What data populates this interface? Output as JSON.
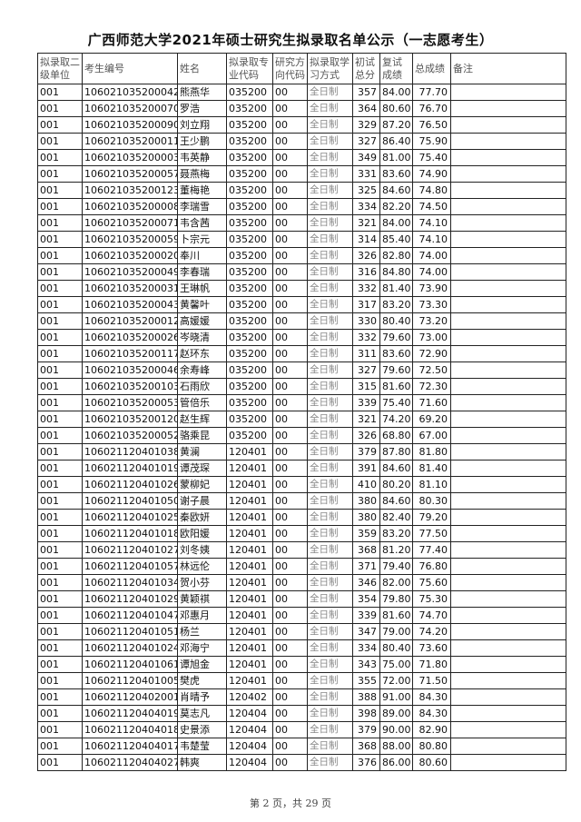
{
  "title": "广西师范大学2021年硕士研究生拟录取名单公示（一志愿考生）",
  "columns": [
    "拟录取二级单位",
    "考生编号",
    "姓名",
    "拟录取专业代码",
    "研究方向代码",
    "拟录取学习方式",
    "初试总分",
    "复试成绩",
    "总成绩",
    "备注"
  ],
  "rows": [
    [
      "001",
      "106021035200042",
      "熊燕华",
      "035200",
      "00",
      "全日制",
      "357",
      "84.00",
      "77.70",
      ""
    ],
    [
      "001",
      "106021035200070",
      "罗浩",
      "035200",
      "00",
      "全日制",
      "364",
      "80.60",
      "76.70",
      ""
    ],
    [
      "001",
      "106021035200090",
      "刘立翔",
      "035200",
      "00",
      "全日制",
      "329",
      "87.20",
      "76.50",
      ""
    ],
    [
      "001",
      "106021035200011",
      "王少鹏",
      "035200",
      "00",
      "全日制",
      "327",
      "86.40",
      "75.90",
      ""
    ],
    [
      "001",
      "106021035200003",
      "韦英静",
      "035200",
      "00",
      "全日制",
      "349",
      "81.00",
      "75.40",
      ""
    ],
    [
      "001",
      "106021035200057",
      "聂燕梅",
      "035200",
      "00",
      "全日制",
      "331",
      "83.60",
      "74.90",
      ""
    ],
    [
      "001",
      "106021035200123",
      "董梅艳",
      "035200",
      "00",
      "全日制",
      "325",
      "84.60",
      "74.80",
      ""
    ],
    [
      "001",
      "106021035200008",
      "李瑞雪",
      "035200",
      "00",
      "全日制",
      "334",
      "82.20",
      "74.50",
      ""
    ],
    [
      "001",
      "106021035200071",
      "韦含茜",
      "035200",
      "00",
      "全日制",
      "321",
      "84.00",
      "74.10",
      ""
    ],
    [
      "001",
      "106021035200059",
      "卜宗元",
      "035200",
      "00",
      "全日制",
      "314",
      "85.40",
      "74.10",
      ""
    ],
    [
      "001",
      "106021035200020",
      "奉川",
      "035200",
      "00",
      "全日制",
      "326",
      "82.80",
      "74.00",
      ""
    ],
    [
      "001",
      "106021035200049",
      "李春瑞",
      "035200",
      "00",
      "全日制",
      "316",
      "84.80",
      "74.00",
      ""
    ],
    [
      "001",
      "106021035200031",
      "王琳帆",
      "035200",
      "00",
      "全日制",
      "332",
      "81.40",
      "73.90",
      ""
    ],
    [
      "001",
      "106021035200043",
      "黄馨叶",
      "035200",
      "00",
      "全日制",
      "317",
      "83.20",
      "73.30",
      ""
    ],
    [
      "001",
      "106021035200012",
      "高媛媛",
      "035200",
      "00",
      "全日制",
      "330",
      "80.40",
      "73.20",
      ""
    ],
    [
      "001",
      "106021035200026",
      "岑晓清",
      "035200",
      "00",
      "全日制",
      "332",
      "79.60",
      "73.00",
      ""
    ],
    [
      "001",
      "106021035200117",
      "赵环东",
      "035200",
      "00",
      "全日制",
      "311",
      "83.60",
      "72.90",
      ""
    ],
    [
      "001",
      "106021035200046",
      "余寿峰",
      "035200",
      "00",
      "全日制",
      "327",
      "79.60",
      "72.50",
      ""
    ],
    [
      "001",
      "106021035200103",
      "石雨欣",
      "035200",
      "00",
      "全日制",
      "315",
      "81.60",
      "72.30",
      ""
    ],
    [
      "001",
      "106021035200053",
      "管倍乐",
      "035200",
      "00",
      "全日制",
      "339",
      "75.40",
      "71.60",
      ""
    ],
    [
      "001",
      "106021035200120",
      "赵生辉",
      "035200",
      "00",
      "全日制",
      "321",
      "74.20",
      "69.20",
      ""
    ],
    [
      "001",
      "106021035200052",
      "骆乘昆",
      "035200",
      "00",
      "全日制",
      "326",
      "68.80",
      "67.00",
      ""
    ],
    [
      "001",
      "106021120401038",
      "黄澜",
      "120401",
      "00",
      "全日制",
      "379",
      "87.80",
      "81.80",
      ""
    ],
    [
      "001",
      "106021120401019",
      "谭茂琛",
      "120401",
      "00",
      "全日制",
      "391",
      "84.60",
      "81.40",
      ""
    ],
    [
      "001",
      "106021120401026",
      "蒙柳妃",
      "120401",
      "00",
      "全日制",
      "410",
      "80.20",
      "81.10",
      ""
    ],
    [
      "001",
      "106021120401050",
      "谢子晨",
      "120401",
      "00",
      "全日制",
      "380",
      "84.60",
      "80.30",
      ""
    ],
    [
      "001",
      "106021120401025",
      "秦欧妍",
      "120401",
      "00",
      "全日制",
      "380",
      "82.40",
      "79.20",
      ""
    ],
    [
      "001",
      "106021120401018",
      "欧阳媛",
      "120401",
      "00",
      "全日制",
      "359",
      "83.20",
      "77.50",
      ""
    ],
    [
      "001",
      "106021120401027",
      "刘冬姨",
      "120401",
      "00",
      "全日制",
      "368",
      "81.20",
      "77.40",
      ""
    ],
    [
      "001",
      "106021120401057",
      "林远伦",
      "120401",
      "00",
      "全日制",
      "371",
      "79.40",
      "76.80",
      ""
    ],
    [
      "001",
      "106021120401034",
      "贺小芬",
      "120401",
      "00",
      "全日制",
      "346",
      "82.00",
      "75.60",
      ""
    ],
    [
      "001",
      "106021120401029",
      "黄颖祺",
      "120401",
      "00",
      "全日制",
      "354",
      "79.80",
      "75.30",
      ""
    ],
    [
      "001",
      "106021120401047",
      "邓惠月",
      "120401",
      "00",
      "全日制",
      "339",
      "81.60",
      "74.70",
      ""
    ],
    [
      "001",
      "106021120401051",
      "杨兰",
      "120401",
      "00",
      "全日制",
      "347",
      "79.00",
      "74.20",
      ""
    ],
    [
      "001",
      "106021120401024",
      "邓海宁",
      "120401",
      "00",
      "全日制",
      "334",
      "80.40",
      "73.60",
      ""
    ],
    [
      "001",
      "106021120401061",
      "谭旭金",
      "120401",
      "00",
      "全日制",
      "343",
      "75.00",
      "71.80",
      ""
    ],
    [
      "001",
      "106021120401005",
      "樊虎",
      "120401",
      "00",
      "全日制",
      "355",
      "72.00",
      "71.50",
      ""
    ],
    [
      "001",
      "106021120402001",
      "肖晴予",
      "120402",
      "00",
      "全日制",
      "388",
      "91.00",
      "84.30",
      ""
    ],
    [
      "001",
      "106021120404019",
      "莫志凡",
      "120404",
      "00",
      "全日制",
      "398",
      "89.00",
      "84.30",
      ""
    ],
    [
      "001",
      "106021120404018",
      "史景添",
      "120404",
      "00",
      "全日制",
      "379",
      "90.00",
      "82.90",
      ""
    ],
    [
      "001",
      "106021120404017",
      "韦楚莹",
      "120404",
      "00",
      "全日制",
      "368",
      "88.00",
      "80.80",
      ""
    ],
    [
      "001",
      "106021120404027",
      "韩爽",
      "120404",
      "00",
      "全日制",
      "376",
      "86.00",
      "80.60",
      ""
    ]
  ],
  "footer": "第 2 页，共 29 页"
}
